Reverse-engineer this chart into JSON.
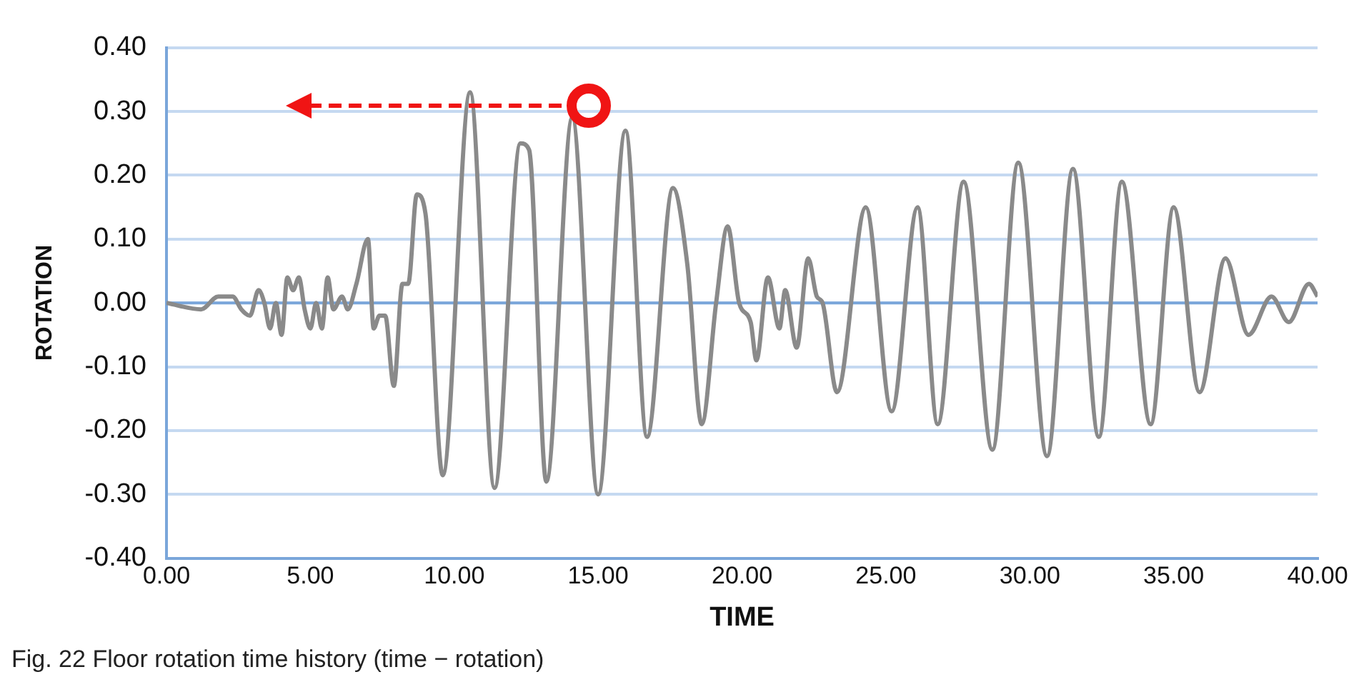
{
  "chart_data": {
    "type": "line",
    "xlabel": "TIME",
    "ylabel": "ROTATION",
    "annotations": [
      "Fig. 22 Floor rotation time history (time − rotation)"
    ],
    "xlim": [
      0,
      40
    ],
    "ylim": [
      -0.4,
      0.4
    ],
    "xticks": [
      {
        "value": 0,
        "label": "0.00"
      },
      {
        "value": 5,
        "label": "5.00"
      },
      {
        "value": 10,
        "label": "10.00"
      },
      {
        "value": 15,
        "label": "15.00"
      },
      {
        "value": 20,
        "label": "20.00"
      },
      {
        "value": 25,
        "label": "25.00"
      },
      {
        "value": 30,
        "label": "30.00"
      },
      {
        "value": 35,
        "label": "35.00"
      },
      {
        "value": 40,
        "label": "40.00"
      }
    ],
    "yticks": [
      {
        "value": -0.4,
        "label": "-0.40"
      },
      {
        "value": -0.3,
        "label": "-0.30"
      },
      {
        "value": -0.2,
        "label": "-0.20"
      },
      {
        "value": -0.1,
        "label": "-0.10"
      },
      {
        "value": 0,
        "label": "0.00"
      },
      {
        "value": 0.1,
        "label": "0.10"
      },
      {
        "value": 0.2,
        "label": "0.20"
      },
      {
        "value": 0.3,
        "label": "0.30"
      },
      {
        "value": 0.4,
        "label": "0.40"
      }
    ],
    "ref_lines": [
      {
        "axis": "y",
        "value": 0,
        "color": "#7aa6da"
      }
    ],
    "grid": "y",
    "legend": false,
    "marker": "none",
    "line_style": "solid",
    "series": [
      {
        "color": "#8a8a8a",
        "x": [
          0,
          1.2,
          1.8,
          2.3,
          2.6,
          2.9,
          3.2,
          3.4,
          3.6,
          3.8,
          4.0,
          4.2,
          4.4,
          4.6,
          4.8,
          5.0,
          5.2,
          5.4,
          5.6,
          5.8,
          6.1,
          6.3,
          6.6,
          7.0,
          7.2,
          7.4,
          7.6,
          7.9,
          8.2,
          8.4,
          8.7,
          9.0,
          9.6,
          10.55,
          11.4,
          12.3,
          12.6,
          13.2,
          14.1,
          15.0,
          15.95,
          16.7,
          17.6,
          18.1,
          18.6,
          19.1,
          19.5,
          19.9,
          20.3,
          20.5,
          20.9,
          21.3,
          21.5,
          21.9,
          22.3,
          22.6,
          22.8,
          23.3,
          24.3,
          25.2,
          26.1,
          26.8,
          27.7,
          28.7,
          29.6,
          30.6,
          31.5,
          32.4,
          33.2,
          34.2,
          35.0,
          35.9,
          36.8,
          37.6,
          38.4,
          39.0,
          39.7,
          40
        ],
        "values": [
          0,
          -0.01,
          0.01,
          0.01,
          -0.01,
          -0.02,
          0.02,
          0.0,
          -0.04,
          0.0,
          -0.05,
          0.04,
          0.02,
          0.04,
          -0.01,
          -0.04,
          0.0,
          -0.04,
          0.04,
          -0.01,
          0.01,
          -0.01,
          0.03,
          0.1,
          -0.04,
          -0.02,
          -0.02,
          -0.13,
          0.03,
          0.03,
          0.17,
          0.14,
          -0.27,
          0.33,
          -0.29,
          0.25,
          0.24,
          -0.28,
          0.29,
          -0.3,
          0.27,
          -0.21,
          0.18,
          0.06,
          -0.19,
          0.0,
          0.12,
          0.0,
          -0.03,
          -0.09,
          0.04,
          -0.04,
          0.02,
          -0.07,
          0.07,
          0.01,
          0.0,
          -0.14,
          0.15,
          -0.17,
          0.15,
          -0.19,
          0.19,
          -0.23,
          0.22,
          -0.24,
          0.21,
          -0.21,
          0.19,
          -0.19,
          0.15,
          -0.14,
          0.07,
          -0.05,
          0.01,
          -0.03,
          0.03,
          0.01
        ]
      }
    ]
  }
}
